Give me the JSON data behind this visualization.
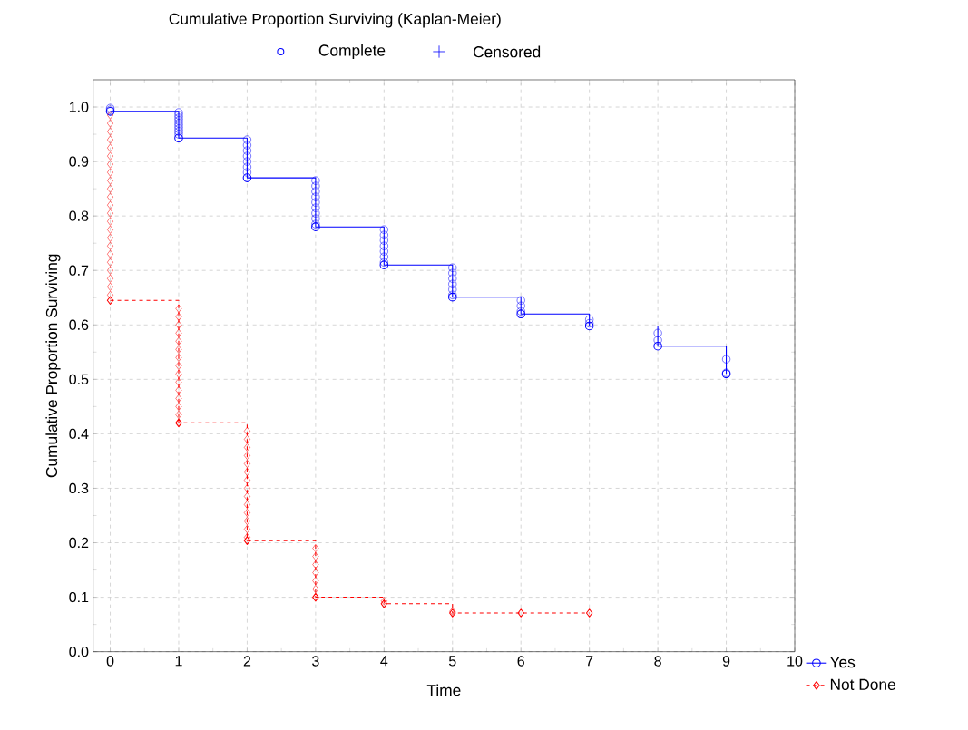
{
  "chart_data": {
    "type": "step",
    "title": "Cumulative Proportion Surviving (Kaplan-Meier)",
    "xlabel": "Time",
    "ylabel": "Cumulative Proportion Surviving",
    "annotations": [
      "Complete",
      "Censored"
    ],
    "xlim": [
      -0.25,
      10
    ],
    "ylim": [
      0,
      1.05
    ],
    "xticks": [
      0,
      1,
      2,
      3,
      4,
      5,
      6,
      7,
      8,
      9,
      10
    ],
    "yticks": [
      {
        "value": 0,
        "label": "0.0"
      },
      {
        "value": 0.1,
        "label": "0.1"
      },
      {
        "value": 0.2,
        "label": "0.2"
      },
      {
        "value": 0.3,
        "label": "0.3"
      },
      {
        "value": 0.4,
        "label": "0.4"
      },
      {
        "value": 0.5,
        "label": "0.5"
      },
      {
        "value": 0.6,
        "label": "0.6"
      },
      {
        "value": 0.7,
        "label": "0.7"
      },
      {
        "value": 0.8,
        "label": "0.8"
      },
      {
        "value": 0.9,
        "label": "0.9"
      },
      {
        "value": 1,
        "label": "1.0"
      }
    ],
    "grid": true,
    "legend": "bottom right",
    "series": [
      {
        "name": "Yes",
        "color": "#0000ff",
        "marker": "circle",
        "line_style": "solid",
        "x": [
          0,
          1,
          2,
          3,
          4,
          5,
          6,
          7,
          8,
          9
        ],
        "values": [
          0.992,
          0.943,
          0.87,
          0.78,
          0.71,
          0.651,
          0.62,
          0.598,
          0.561,
          0.51
        ]
      },
      {
        "name": "Not Done",
        "color": "#ff0000",
        "marker": "diamond",
        "line_style": "dashed",
        "x": [
          0,
          1,
          2,
          3,
          4,
          5,
          6,
          7
        ],
        "values": [
          0.645,
          0.42,
          0.204,
          0.1,
          0.088,
          0.071,
          0.071,
          0.071
        ]
      },
      {
        "type": "scatter",
        "color": "#0000ff",
        "marker": "circle",
        "x": [
          0,
          0,
          1,
          1,
          1,
          1,
          1,
          1,
          1,
          1,
          1,
          2,
          2,
          2,
          2,
          2,
          2,
          2,
          3,
          3,
          3,
          3,
          3,
          3,
          3,
          3,
          3,
          4,
          4,
          4,
          4,
          4,
          4,
          4,
          5,
          5,
          5,
          5,
          5,
          5,
          6,
          6,
          6,
          7,
          7,
          8,
          8,
          9,
          9
        ],
        "values": [
          0.998,
          0.995,
          0.99,
          0.985,
          0.98,
          0.975,
          0.97,
          0.965,
          0.96,
          0.955,
          0.95,
          0.94,
          0.93,
          0.92,
          0.91,
          0.9,
          0.89,
          0.88,
          0.865,
          0.855,
          0.845,
          0.835,
          0.825,
          0.815,
          0.805,
          0.795,
          0.785,
          0.775,
          0.765,
          0.755,
          0.745,
          0.735,
          0.725,
          0.715,
          0.705,
          0.695,
          0.685,
          0.675,
          0.665,
          0.655,
          0.645,
          0.635,
          0.625,
          0.61,
          0.603,
          0.585,
          0.572,
          0.537,
          0.512
        ]
      },
      {
        "type": "scatter",
        "color": "#ff0000",
        "marker": "diamond",
        "x": [
          0,
          0,
          0,
          0,
          0,
          0,
          0,
          0,
          0,
          0,
          0,
          0,
          0,
          0,
          0,
          0,
          0,
          0,
          0,
          0,
          0,
          0,
          0,
          1,
          1,
          1,
          1,
          1,
          1,
          1,
          1,
          1,
          1,
          1,
          1,
          1,
          1,
          2,
          2,
          2,
          2,
          2,
          2,
          2,
          2,
          2,
          2,
          2,
          2,
          2,
          2,
          3,
          3,
          3,
          3,
          3,
          3,
          4,
          5
        ],
        "values": [
          0.985,
          0.97,
          0.955,
          0.94,
          0.925,
          0.91,
          0.895,
          0.88,
          0.865,
          0.85,
          0.835,
          0.82,
          0.805,
          0.79,
          0.775,
          0.76,
          0.745,
          0.73,
          0.715,
          0.7,
          0.685,
          0.67,
          0.655,
          0.63,
          0.615,
          0.6,
          0.585,
          0.57,
          0.555,
          0.54,
          0.525,
          0.51,
          0.495,
          0.48,
          0.465,
          0.45,
          0.435,
          0.405,
          0.39,
          0.375,
          0.36,
          0.345,
          0.33,
          0.315,
          0.3,
          0.285,
          0.27,
          0.255,
          0.24,
          0.225,
          0.21,
          0.19,
          0.175,
          0.16,
          0.145,
          0.13,
          0.115,
          0.093,
          0.074
        ]
      }
    ]
  }
}
